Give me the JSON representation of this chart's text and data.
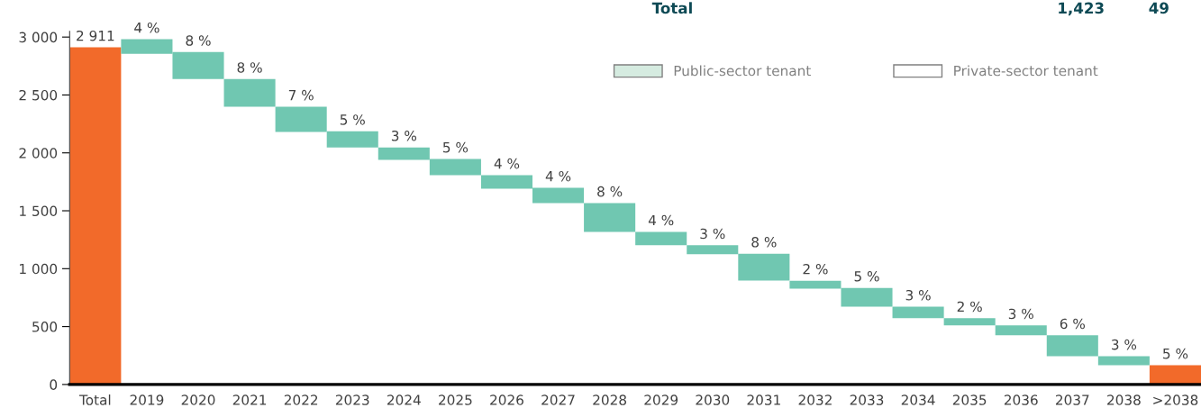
{
  "chart_data": {
    "type": "bar",
    "categories": [
      "Total",
      "2019",
      "2020",
      "2021",
      "2022",
      "2023",
      "2024",
      "2025",
      "2026",
      "2027",
      "2028",
      "2029",
      "2030",
      "2031",
      "2032",
      "2033",
      "2034",
      "2035",
      "2036",
      "2037",
      "2038",
      ">2038"
    ],
    "series": [
      {
        "values": [
          2911,
          126,
          233,
          239,
          217,
          139,
          108,
          140,
          117,
          132,
          248,
          116,
          78,
          231,
          68,
          163,
          99,
          62,
          86,
          180,
          78,
          166
        ],
        "base": [
          0,
          2855,
          2637,
          2398,
          2181,
          2047,
          1939,
          1807,
          1690,
          1566,
          1318,
          1202,
          1124,
          898,
          828,
          671,
          572,
          510,
          424,
          244,
          166,
          0
        ],
        "colors": [
          "#f26a2a",
          "#70c7b1",
          "#70c7b1",
          "#70c7b1",
          "#70c7b1",
          "#70c7b1",
          "#70c7b1",
          "#70c7b1",
          "#70c7b1",
          "#70c7b1",
          "#70c7b1",
          "#70c7b1",
          "#70c7b1",
          "#70c7b1",
          "#70c7b1",
          "#70c7b1",
          "#70c7b1",
          "#70c7b1",
          "#70c7b1",
          "#70c7b1",
          "#70c7b1",
          "#f26a2a"
        ],
        "value_labels": [
          "2 911",
          null,
          null,
          null,
          null,
          null,
          null,
          null,
          null,
          null,
          null,
          null,
          null,
          null,
          null,
          null,
          null,
          null,
          null,
          null,
          null,
          null
        ]
      },
      {
        "name": "Public-sector tenant",
        "color": "#d5ebe0",
        "values": [
          null,
          null,
          null,
          null,
          null,
          null,
          null,
          null,
          null,
          null,
          null,
          null,
          null,
          null,
          null,
          null,
          null,
          null,
          null,
          null,
          null,
          null
        ]
      },
      {
        "name": "Private-sector tenant",
        "color": "#ffffff",
        "values": [
          null,
          null,
          null,
          null,
          null,
          null,
          null,
          null,
          null,
          null,
          null,
          null,
          null,
          null,
          null,
          null,
          null,
          null,
          null,
          null,
          null,
          null
        ]
      }
    ],
    "ylim": [
      0,
      3050
    ],
    "yticks": [
      0,
      500,
      {
        "value": 1000,
        "label": "1 000"
      },
      {
        "value": 1500,
        "label": "1 500"
      },
      {
        "value": 2000,
        "label": "2 000"
      },
      {
        "value": 2500,
        "label": "2 500"
      },
      {
        "value": 3000,
        "label": "3 000"
      }
    ],
    "grid": false,
    "legend": "top right",
    "annotations": [
      "Total",
      "1,423",
      "49",
      {
        "text": "4 %",
        "x": "2019",
        "y": 2981
      },
      {
        "text": "8 %",
        "x": "2020",
        "y": 2870
      },
      {
        "text": "8 %",
        "x": "2021",
        "y": 2637
      },
      {
        "text": "7 %",
        "x": "2022",
        "y": 2398
      },
      {
        "text": "5 %",
        "x": "2023",
        "y": 2186
      },
      {
        "text": "3 %",
        "x": "2024",
        "y": 2047
      },
      {
        "text": "5 %",
        "x": "2025",
        "y": 1947
      },
      {
        "text": "4 %",
        "x": "2026",
        "y": 1807
      },
      {
        "text": "4 %",
        "x": "2027",
        "y": 1698
      },
      {
        "text": "8 %",
        "x": "2028",
        "y": 1566
      },
      {
        "text": "4 %",
        "x": "2029",
        "y": 1318
      },
      {
        "text": "3 %",
        "x": "2030",
        "y": 1202
      },
      {
        "text": "8 %",
        "x": "2031",
        "y": 1129
      },
      {
        "text": "2 %",
        "x": "2032",
        "y": 896
      },
      {
        "text": "5 %",
        "x": "2033",
        "y": 834
      },
      {
        "text": "3 %",
        "x": "2034",
        "y": 671
      },
      {
        "text": "2 %",
        "x": "2035",
        "y": 572
      },
      {
        "text": "3 %",
        "x": "2036",
        "y": 510
      },
      {
        "text": "6 %",
        "x": "2037",
        "y": 424
      },
      {
        "text": "3 %",
        "x": "2038",
        "y": 244
      },
      {
        "text": "5 %",
        "x": ">2038",
        "y": 166
      }
    ]
  }
}
